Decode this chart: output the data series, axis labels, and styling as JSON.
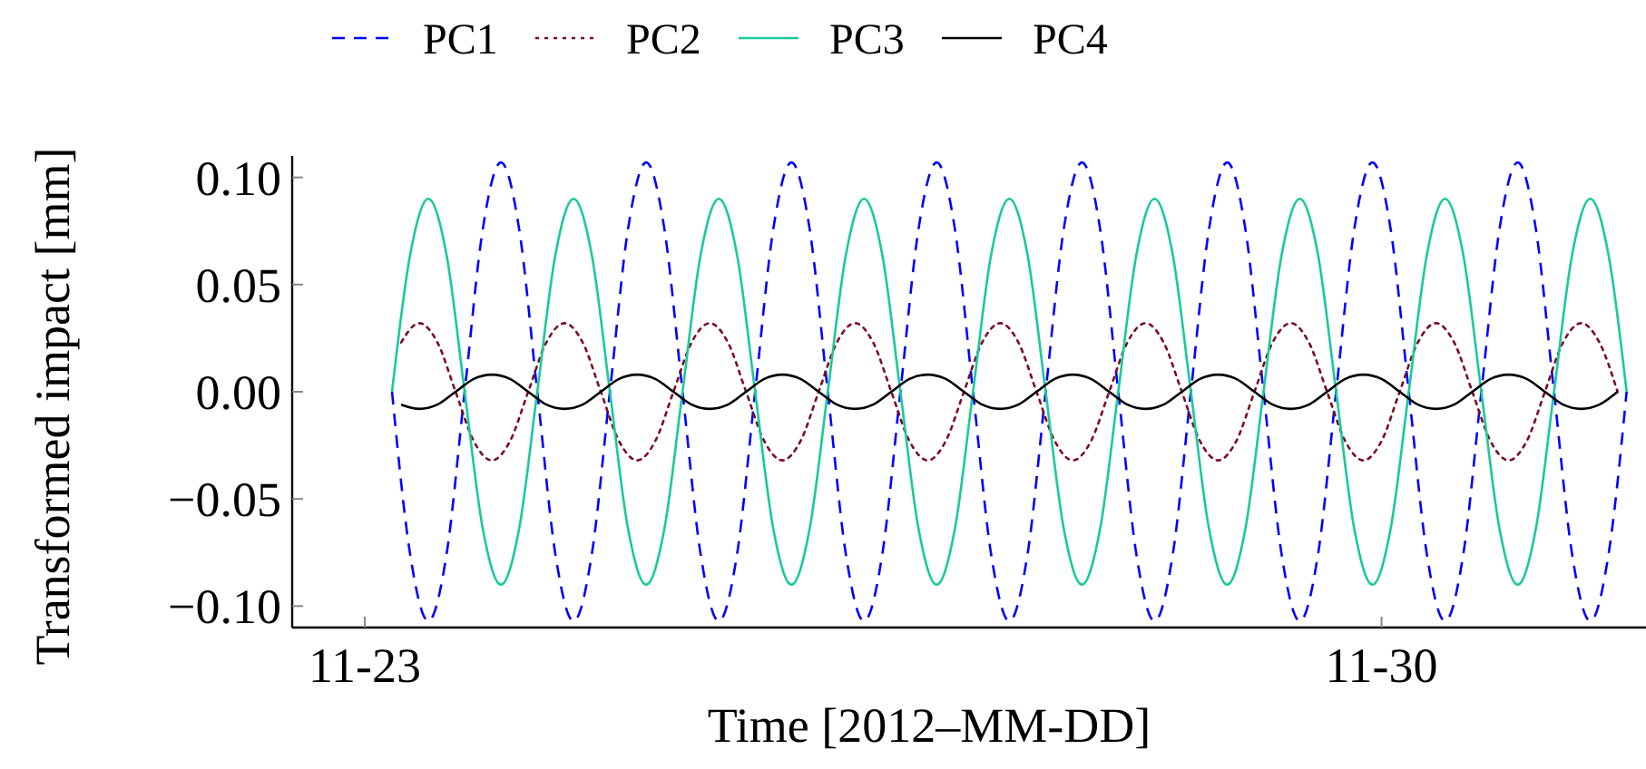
{
  "chart_data": {
    "type": "line",
    "xlabel": "Time [2012–MM-DD]",
    "ylabel": "Transformed impact [mm]",
    "xlim": [
      "2012-11-22T12:00",
      "2012-12-01T21:30"
    ],
    "ylim": [
      -0.11,
      0.11
    ],
    "xticks": [
      {
        "value": "2012-11-23",
        "label": "11-23"
      },
      {
        "value": "2012-11-30",
        "label": "11-30"
      }
    ],
    "yticks": [
      {
        "value": -0.1,
        "label": "−0.10"
      },
      {
        "value": -0.05,
        "label": "−0.05"
      },
      {
        "value": 0,
        "label": "0.00"
      },
      {
        "value": 0.05,
        "label": "0.05"
      },
      {
        "value": 0.1,
        "label": "0.10"
      }
    ],
    "grid": false,
    "legend": "top",
    "marker": "none",
    "x": [
      "2012-11-23T06:00",
      "2012-11-23T09:00",
      "2012-11-23T12:00",
      "2012-11-23T15:00",
      "2012-11-23T18:00",
      "2012-11-23T21:00",
      "2012-11-24T00:00",
      "2012-11-24T03:00",
      "2012-11-24T06:00",
      "2012-11-24T09:00",
      "2012-11-24T12:00",
      "2012-11-24T15:00",
      "2012-11-24T18:00",
      "2012-11-24T21:00",
      "2012-11-25T00:00",
      "2012-11-25T03:00",
      "2012-11-25T06:00",
      "2012-11-25T09:00",
      "2012-11-25T12:00",
      "2012-11-25T15:00",
      "2012-11-25T18:00",
      "2012-11-25T21:00",
      "2012-11-26T00:00",
      "2012-11-26T03:00",
      "2012-11-26T06:00",
      "2012-11-26T09:00",
      "2012-11-26T12:00",
      "2012-11-26T15:00",
      "2012-11-26T18:00",
      "2012-11-26T21:00",
      "2012-11-27T00:00",
      "2012-11-27T03:00",
      "2012-11-27T06:00",
      "2012-11-27T09:00",
      "2012-11-27T12:00",
      "2012-11-27T15:00",
      "2012-11-27T18:00",
      "2012-11-27T21:00",
      "2012-11-28T00:00",
      "2012-11-28T03:00",
      "2012-11-28T06:00",
      "2012-11-28T09:00",
      "2012-11-28T12:00",
      "2012-11-28T15:00",
      "2012-11-28T18:00",
      "2012-11-28T21:00",
      "2012-11-29T00:00",
      "2012-11-29T03:00",
      "2012-11-29T06:00",
      "2012-11-29T09:00",
      "2012-11-29T12:00",
      "2012-11-29T15:00",
      "2012-11-29T18:00",
      "2012-11-29T21:00",
      "2012-11-30T00:00",
      "2012-11-30T03:00",
      "2012-11-30T06:00",
      "2012-11-30T09:00",
      "2012-11-30T12:00",
      "2012-11-30T15:00",
      "2012-11-30T18:00",
      "2012-11-30T21:00",
      "2012-12-01T00:00",
      "2012-12-01T03:00",
      "2012-12-01T06:00",
      "2012-12-01T09:00",
      "2012-12-01T12:00",
      "2012-12-01T15:00"
    ],
    "series": [
      {
        "name": "PC1",
        "color": "#0000ff",
        "line_style": "dashed",
        "x": [
          "2012-11-23T04:30",
          "2012-11-23T07:30",
          "2012-11-23T10:30",
          "2012-11-23T13:30",
          "2012-11-23T16:30",
          "2012-11-23T19:30",
          "2012-11-23T22:30",
          "2012-11-24T01:30",
          "2012-11-24T04:30",
          "2012-11-24T07:30",
          "2012-11-24T10:30",
          "2012-11-24T13:30",
          "2012-11-24T16:30",
          "2012-11-24T19:30",
          "2012-11-24T22:30",
          "2012-11-25T01:30",
          "2012-11-25T04:30",
          "2012-11-25T07:30",
          "2012-11-25T10:30",
          "2012-11-25T13:30",
          "2012-11-25T16:30",
          "2012-11-25T19:30",
          "2012-11-25T22:30",
          "2012-11-26T01:30",
          "2012-11-26T04:30",
          "2012-11-26T07:30",
          "2012-11-26T10:30",
          "2012-11-26T13:30",
          "2012-11-26T16:30",
          "2012-11-26T19:30",
          "2012-11-26T22:30",
          "2012-11-27T01:30",
          "2012-11-27T04:30",
          "2012-11-27T07:30",
          "2012-11-27T10:30",
          "2012-11-27T13:30",
          "2012-11-27T16:30",
          "2012-11-27T19:30",
          "2012-11-27T22:30",
          "2012-11-28T01:30",
          "2012-11-28T04:30",
          "2012-11-28T07:30",
          "2012-11-28T10:30",
          "2012-11-28T13:30",
          "2012-11-28T16:30",
          "2012-11-28T19:30",
          "2012-11-28T22:30",
          "2012-11-29T01:30",
          "2012-11-29T04:30",
          "2012-11-29T07:30",
          "2012-11-29T10:30",
          "2012-11-29T13:30",
          "2012-11-29T16:30",
          "2012-11-29T19:30",
          "2012-11-29T22:30",
          "2012-11-30T01:30",
          "2012-11-30T04:30",
          "2012-11-30T07:30",
          "2012-11-30T10:30",
          "2012-11-30T13:30",
          "2012-11-30T16:30",
          "2012-11-30T19:30",
          "2012-11-30T22:30",
          "2012-12-01T01:30",
          "2012-12-01T04:30",
          "2012-12-01T07:30",
          "2012-12-01T10:30",
          "2012-12-01T13:30",
          "2012-12-01T16:30"
        ],
        "values": [
          0,
          -0.076,
          -0.107,
          -0.076,
          0,
          0.076,
          0.107,
          0.076,
          0,
          -0.076,
          -0.107,
          -0.076,
          0,
          0.076,
          0.107,
          0.076,
          0,
          -0.076,
          -0.107,
          -0.076,
          0,
          0.076,
          0.107,
          0.076,
          0,
          -0.076,
          -0.107,
          -0.076,
          0,
          0.076,
          0.107,
          0.076,
          0,
          -0.076,
          -0.107,
          -0.076,
          0,
          0.076,
          0.107,
          0.076,
          0,
          -0.076,
          -0.107,
          -0.076,
          0,
          0.076,
          0.107,
          0.076,
          0,
          -0.076,
          -0.107,
          -0.076,
          0,
          0.076,
          0.107,
          0.076,
          0,
          -0.076,
          -0.107,
          -0.076,
          0,
          0.076,
          0.107,
          0.076,
          0,
          -0.076,
          -0.107,
          -0.076,
          0
        ]
      },
      {
        "name": "PC2",
        "color": "#7b0a28",
        "line_style": "dotted",
        "values": [
          0.023,
          0.032,
          0.023,
          0,
          -0.023,
          -0.032,
          -0.023,
          0,
          0.023,
          0.032,
          0.023,
          0,
          -0.023,
          -0.032,
          -0.023,
          0,
          0.023,
          0.032,
          0.023,
          0,
          -0.023,
          -0.032,
          -0.023,
          0,
          0.023,
          0.032,
          0.023,
          0,
          -0.023,
          -0.032,
          -0.023,
          0,
          0.023,
          0.032,
          0.023,
          0,
          -0.023,
          -0.032,
          -0.023,
          0,
          0.023,
          0.032,
          0.023,
          0,
          -0.023,
          -0.032,
          -0.023,
          0,
          0.023,
          0.032,
          0.023,
          0,
          -0.023,
          -0.032,
          -0.023,
          0,
          0.023,
          0.032,
          0.023,
          0,
          -0.023,
          -0.032,
          -0.023,
          0,
          0.023,
          0.032,
          0.023,
          0
        ]
      },
      {
        "name": "PC3",
        "color": "#1ac99c",
        "line_style": "solid",
        "x": [
          "2012-11-23T04:30",
          "2012-11-23T07:30",
          "2012-11-23T10:30",
          "2012-11-23T13:30",
          "2012-11-23T16:30",
          "2012-11-23T19:30",
          "2012-11-23T22:30",
          "2012-11-24T01:30",
          "2012-11-24T04:30",
          "2012-11-24T07:30",
          "2012-11-24T10:30",
          "2012-11-24T13:30",
          "2012-11-24T16:30",
          "2012-11-24T19:30",
          "2012-11-24T22:30",
          "2012-11-25T01:30",
          "2012-11-25T04:30",
          "2012-11-25T07:30",
          "2012-11-25T10:30",
          "2012-11-25T13:30",
          "2012-11-25T16:30",
          "2012-11-25T19:30",
          "2012-11-25T22:30",
          "2012-11-26T01:30",
          "2012-11-26T04:30",
          "2012-11-26T07:30",
          "2012-11-26T10:30",
          "2012-11-26T13:30",
          "2012-11-26T16:30",
          "2012-11-26T19:30",
          "2012-11-26T22:30",
          "2012-11-27T01:30",
          "2012-11-27T04:30",
          "2012-11-27T07:30",
          "2012-11-27T10:30",
          "2012-11-27T13:30",
          "2012-11-27T16:30",
          "2012-11-27T19:30",
          "2012-11-27T22:30",
          "2012-11-28T01:30",
          "2012-11-28T04:30",
          "2012-11-28T07:30",
          "2012-11-28T10:30",
          "2012-11-28T13:30",
          "2012-11-28T16:30",
          "2012-11-28T19:30",
          "2012-11-28T22:30",
          "2012-11-29T01:30",
          "2012-11-29T04:30",
          "2012-11-29T07:30",
          "2012-11-29T10:30",
          "2012-11-29T13:30",
          "2012-11-29T16:30",
          "2012-11-29T19:30",
          "2012-11-29T22:30",
          "2012-11-30T01:30",
          "2012-11-30T04:30",
          "2012-11-30T07:30",
          "2012-11-30T10:30",
          "2012-11-30T13:30",
          "2012-11-30T16:30",
          "2012-11-30T19:30",
          "2012-11-30T22:30",
          "2012-12-01T01:30",
          "2012-12-01T04:30",
          "2012-12-01T07:30",
          "2012-12-01T10:30",
          "2012-12-01T13:30",
          "2012-12-01T16:30"
        ],
        "values": [
          0,
          0.064,
          0.09,
          0.064,
          0,
          -0.064,
          -0.09,
          -0.064,
          0,
          0.064,
          0.09,
          0.064,
          0,
          -0.064,
          -0.09,
          -0.064,
          0,
          0.064,
          0.09,
          0.064,
          0,
          -0.064,
          -0.09,
          -0.064,
          0,
          0.064,
          0.09,
          0.064,
          0,
          -0.064,
          -0.09,
          -0.064,
          0,
          0.064,
          0.09,
          0.064,
          0,
          -0.064,
          -0.09,
          -0.064,
          0,
          0.064,
          0.09,
          0.064,
          0,
          -0.064,
          -0.09,
          -0.064,
          0,
          0.064,
          0.09,
          0.064,
          0,
          -0.064,
          -0.09,
          -0.064,
          0,
          0.064,
          0.09,
          0.064,
          0,
          -0.064,
          -0.09,
          -0.064,
          0,
          0.064,
          0.09,
          0.064,
          0
        ]
      },
      {
        "name": "PC4",
        "color": "#000000",
        "line_style": "solid",
        "values": [
          -0.006,
          -0.008,
          -0.006,
          0,
          0.006,
          0.008,
          0.006,
          0,
          -0.006,
          -0.008,
          -0.006,
          0,
          0.006,
          0.008,
          0.006,
          0,
          -0.006,
          -0.008,
          -0.006,
          0,
          0.006,
          0.008,
          0.006,
          0,
          -0.006,
          -0.008,
          -0.006,
          0,
          0.006,
          0.008,
          0.006,
          0,
          -0.006,
          -0.008,
          -0.006,
          0,
          0.006,
          0.008,
          0.006,
          0,
          -0.006,
          -0.008,
          -0.006,
          0,
          0.006,
          0.008,
          0.006,
          0,
          -0.006,
          -0.008,
          -0.006,
          0,
          0.006,
          0.008,
          0.006,
          0,
          -0.006,
          -0.008,
          -0.006,
          0,
          0.006,
          0.008,
          0.006,
          0,
          -0.006,
          -0.008,
          -0.006,
          0
        ]
      }
    ]
  }
}
